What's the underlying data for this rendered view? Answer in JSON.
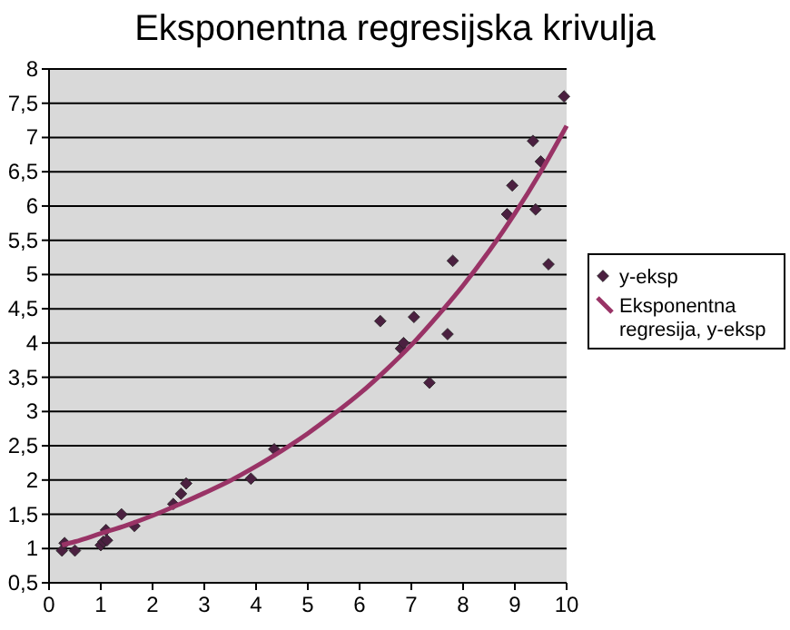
{
  "chart_data": {
    "type": "scatter",
    "title": "Eksponentna regresijska krivulja",
    "xlim": [
      0,
      10
    ],
    "xticks": [
      0,
      1,
      2,
      3,
      4,
      5,
      6,
      7,
      8,
      9,
      10
    ],
    "ylim": [
      0.5,
      8
    ],
    "yticks": [
      {
        "value": 0.5,
        "label": "0,5"
      },
      1,
      {
        "value": 1.5,
        "label": "1,5"
      },
      2,
      {
        "value": 2.5,
        "label": "2,5"
      },
      3,
      {
        "value": 3.5,
        "label": "3,5"
      },
      4,
      {
        "value": 4.5,
        "label": "4,5"
      },
      5,
      {
        "value": 5.5,
        "label": "5,5"
      },
      6,
      {
        "value": 6.5,
        "label": "6,5"
      },
      7,
      {
        "value": 7.5,
        "label": "7,5"
      },
      8
    ],
    "grid": "y",
    "legend": "right",
    "series": [
      {
        "name": "y-eksp",
        "marker": "diamond",
        "color": "#4b2040",
        "x": [
          0.25,
          0.3,
          0.5,
          1.0,
          1.05,
          1.1,
          1.12,
          1.4,
          1.65,
          2.4,
          2.55,
          2.65,
          3.9,
          4.35,
          6.4,
          6.8,
          6.85,
          7.05,
          7.35,
          7.7,
          7.8,
          8.85,
          8.95,
          9.35,
          9.4,
          9.5,
          9.65,
          9.95
        ],
        "values": [
          0.97,
          1.08,
          0.97,
          1.05,
          1.1,
          1.27,
          1.12,
          1.5,
          1.33,
          1.65,
          1.8,
          1.95,
          2.02,
          2.45,
          4.32,
          3.92,
          4.0,
          4.38,
          3.42,
          4.13,
          5.2,
          5.88,
          6.3,
          6.95,
          5.95,
          6.65,
          5.15,
          7.6
        ]
      },
      {
        "name": "Eksponentna regresija, y-eksp",
        "type": "line",
        "marker": "none",
        "color": "#993366",
        "x": [
          0.25,
          0.5,
          1,
          1.5,
          2,
          2.5,
          3,
          3.5,
          4,
          4.5,
          5,
          5.5,
          6,
          6.5,
          7,
          7.5,
          8,
          8.5,
          9,
          9.5,
          10
        ],
        "values": [
          1.05,
          1.1,
          1.22,
          1.34,
          1.48,
          1.64,
          1.81,
          1.99,
          2.2,
          2.43,
          2.68,
          2.96,
          3.26,
          3.6,
          3.97,
          4.39,
          4.84,
          5.34,
          5.89,
          6.5,
          7.17
        ]
      }
    ]
  }
}
